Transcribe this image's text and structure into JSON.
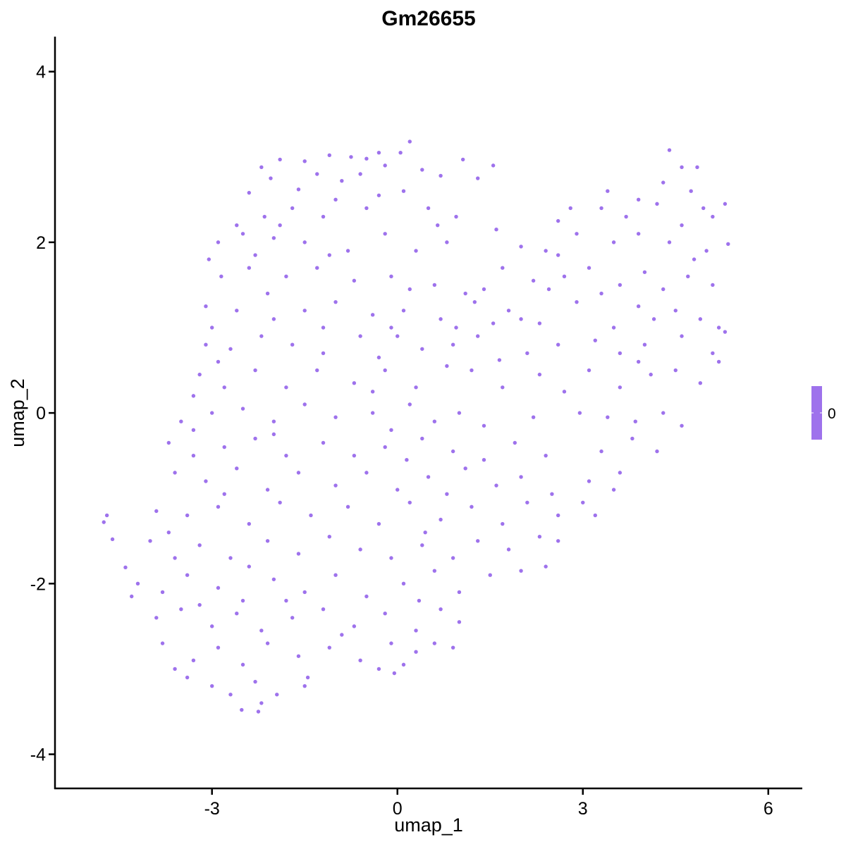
{
  "chart_data": {
    "type": "scatter",
    "title": "Gm26655",
    "xlabel": "umap_1",
    "ylabel": "umap_2",
    "xlim": [
      -5.54,
      6.55
    ],
    "ylim": [
      -4.4,
      4.41
    ],
    "xticks": [
      -3,
      0,
      3,
      6
    ],
    "yticks": [
      -4,
      -2,
      0,
      2,
      4
    ],
    "xtick_labels": [
      "-3",
      "0",
      "3",
      "6"
    ],
    "ytick_labels": [
      "-4",
      "-2",
      "0",
      "2",
      "4"
    ],
    "grid": false,
    "point_color": "#9e72ec",
    "legend": {
      "type": "colorbar",
      "placement": "right",
      "labels": [
        "0"
      ],
      "color": "#9e72ec"
    },
    "points": [
      [
        0.2,
        3.18
      ],
      [
        -0.3,
        3.05
      ],
      [
        0.05,
        3.05
      ],
      [
        -1.1,
        3.02
      ],
      [
        -0.75,
        3.0
      ],
      [
        -0.5,
        2.98
      ],
      [
        4.4,
        3.08
      ],
      [
        1.06,
        2.97
      ],
      [
        -1.9,
        2.97
      ],
      [
        -1.5,
        2.95
      ],
      [
        -2.2,
        2.88
      ],
      [
        -1.3,
        2.8
      ],
      [
        -0.9,
        2.72
      ],
      [
        -0.2,
        2.9
      ],
      [
        0.4,
        2.85
      ],
      [
        0.7,
        2.78
      ],
      [
        1.3,
        2.75
      ],
      [
        1.55,
        2.9
      ],
      [
        4.6,
        2.88
      ],
      [
        4.85,
        2.88
      ],
      [
        4.3,
        2.7
      ],
      [
        4.75,
        2.6
      ],
      [
        -2.4,
        2.58
      ],
      [
        -1.6,
        2.62
      ],
      [
        -0.6,
        2.8
      ],
      [
        0.1,
        2.6
      ],
      [
        -2.05,
        2.75
      ],
      [
        -1.0,
        2.5
      ],
      [
        3.4,
        2.6
      ],
      [
        3.9,
        2.5
      ],
      [
        -2.6,
        2.2
      ],
      [
        -2.15,
        2.3
      ],
      [
        -1.7,
        2.4
      ],
      [
        -1.2,
        2.3
      ],
      [
        -0.5,
        2.4
      ],
      [
        0.5,
        2.4
      ],
      [
        0.95,
        2.3
      ],
      [
        2.8,
        2.4
      ],
      [
        3.3,
        2.4
      ],
      [
        3.7,
        2.3
      ],
      [
        4.2,
        2.45
      ],
      [
        4.95,
        2.4
      ],
      [
        5.3,
        2.45
      ],
      [
        5.1,
        2.3
      ],
      [
        -0.3,
        2.55
      ],
      [
        0.65,
        2.2
      ],
      [
        -1.9,
        2.2
      ],
      [
        2.6,
        2.25
      ],
      [
        4.6,
        2.2
      ],
      [
        -2.9,
        2.0
      ],
      [
        -2.5,
        2.1
      ],
      [
        -2.0,
        2.05
      ],
      [
        -1.5,
        2.0
      ],
      [
        -0.8,
        1.9
      ],
      [
        -0.2,
        2.1
      ],
      [
        0.3,
        1.9
      ],
      [
        0.8,
        2.0
      ],
      [
        1.6,
        2.15
      ],
      [
        2.0,
        1.95
      ],
      [
        2.4,
        1.9
      ],
      [
        2.9,
        2.1
      ],
      [
        3.5,
        2.0
      ],
      [
        3.9,
        2.1
      ],
      [
        4.4,
        2.0
      ],
      [
        5.0,
        1.9
      ],
      [
        5.35,
        1.98
      ],
      [
        -3.05,
        1.8
      ],
      [
        -2.3,
        1.85
      ],
      [
        -1.1,
        1.85
      ],
      [
        2.6,
        1.85
      ],
      [
        4.8,
        1.8
      ],
      [
        -2.85,
        1.6
      ],
      [
        -2.4,
        1.7
      ],
      [
        -1.8,
        1.6
      ],
      [
        -1.3,
        1.7
      ],
      [
        -0.7,
        1.55
      ],
      [
        -0.1,
        1.6
      ],
      [
        0.6,
        1.5
      ],
      [
        1.1,
        1.4
      ],
      [
        1.7,
        1.7
      ],
      [
        2.2,
        1.55
      ],
      [
        2.7,
        1.6
      ],
      [
        3.1,
        1.7
      ],
      [
        3.6,
        1.5
      ],
      [
        4.0,
        1.65
      ],
      [
        4.3,
        1.45
      ],
      [
        4.7,
        1.6
      ],
      [
        5.1,
        1.5
      ],
      [
        -2.1,
        1.4
      ],
      [
        0.2,
        1.45
      ],
      [
        1.4,
        1.45
      ],
      [
        2.45,
        1.45
      ],
      [
        3.3,
        1.4
      ],
      [
        -3.1,
        1.25
      ],
      [
        -3.0,
        1.0
      ],
      [
        -2.6,
        1.2
      ],
      [
        -2.0,
        1.1
      ],
      [
        -1.5,
        1.2
      ],
      [
        -1.0,
        1.3
      ],
      [
        -0.4,
        1.15
      ],
      [
        0.1,
        1.2
      ],
      [
        0.7,
        1.1
      ],
      [
        1.25,
        1.3
      ],
      [
        1.8,
        1.2
      ],
      [
        2.3,
        1.05
      ],
      [
        2.9,
        1.3
      ],
      [
        3.9,
        1.25
      ],
      [
        4.5,
        1.2
      ],
      [
        4.9,
        1.1
      ],
      [
        5.2,
        1.0
      ],
      [
        -1.2,
        1.0
      ],
      [
        -0.1,
        1.0
      ],
      [
        0.95,
        1.0
      ],
      [
        1.55,
        1.05
      ],
      [
        2.0,
        1.1
      ],
      [
        3.5,
        1.0
      ],
      [
        4.15,
        1.1
      ],
      [
        -3.1,
        0.8
      ],
      [
        -2.7,
        0.75
      ],
      [
        -2.2,
        0.9
      ],
      [
        -1.7,
        0.8
      ],
      [
        -1.2,
        0.7
      ],
      [
        -0.6,
        0.9
      ],
      [
        0.0,
        0.9
      ],
      [
        0.4,
        0.75
      ],
      [
        0.9,
        0.8
      ],
      [
        1.3,
        0.9
      ],
      [
        2.1,
        0.7
      ],
      [
        2.6,
        0.8
      ],
      [
        3.2,
        0.85
      ],
      [
        3.6,
        0.7
      ],
      [
        4.0,
        0.8
      ],
      [
        4.6,
        0.9
      ],
      [
        5.1,
        0.7
      ],
      [
        5.3,
        0.95
      ],
      [
        -2.9,
        0.6
      ],
      [
        -0.3,
        0.65
      ],
      [
        1.65,
        0.62
      ],
      [
        -3.2,
        0.45
      ],
      [
        -2.8,
        0.3
      ],
      [
        -2.3,
        0.5
      ],
      [
        -1.8,
        0.3
      ],
      [
        -1.3,
        0.5
      ],
      [
        -0.7,
        0.35
      ],
      [
        -0.2,
        0.5
      ],
      [
        0.3,
        0.3
      ],
      [
        0.8,
        0.55
      ],
      [
        1.2,
        0.5
      ],
      [
        1.7,
        0.3
      ],
      [
        2.3,
        0.45
      ],
      [
        3.1,
        0.5
      ],
      [
        3.6,
        0.3
      ],
      [
        4.1,
        0.45
      ],
      [
        4.5,
        0.5
      ],
      [
        4.9,
        0.35
      ],
      [
        5.2,
        0.6
      ],
      [
        -3.3,
        0.2
      ],
      [
        -0.4,
        0.25
      ],
      [
        2.7,
        0.25
      ],
      [
        3.9,
        0.6
      ],
      [
        -3.5,
        -0.1
      ],
      [
        -3.0,
        0.0
      ],
      [
        -2.5,
        0.05
      ],
      [
        -2.0,
        -0.1
      ],
      [
        -1.5,
        0.1
      ],
      [
        -1.0,
        -0.05
      ],
      [
        -0.4,
        0.0
      ],
      [
        0.2,
        0.1
      ],
      [
        0.6,
        -0.1
      ],
      [
        1.0,
        0.0
      ],
      [
        1.4,
        -0.15
      ],
      [
        2.2,
        -0.05
      ],
      [
        2.95,
        0.0
      ],
      [
        3.4,
        -0.05
      ],
      [
        3.85,
        -0.1
      ],
      [
        4.3,
        0.0
      ],
      [
        4.6,
        -0.15
      ],
      [
        -3.3,
        -0.2
      ],
      [
        -0.1,
        -0.2
      ],
      [
        -3.7,
        -0.35
      ],
      [
        -3.3,
        -0.5
      ],
      [
        -2.8,
        -0.4
      ],
      [
        -2.3,
        -0.3
      ],
      [
        -1.8,
        -0.5
      ],
      [
        -1.2,
        -0.35
      ],
      [
        -0.7,
        -0.5
      ],
      [
        -0.2,
        -0.4
      ],
      [
        0.4,
        -0.3
      ],
      [
        0.9,
        -0.45
      ],
      [
        1.4,
        -0.55
      ],
      [
        1.9,
        -0.35
      ],
      [
        2.4,
        -0.5
      ],
      [
        3.3,
        -0.45
      ],
      [
        3.8,
        -0.3
      ],
      [
        4.2,
        -0.45
      ],
      [
        -2.0,
        -0.25
      ],
      [
        0.15,
        -0.55
      ],
      [
        -3.6,
        -0.7
      ],
      [
        -3.1,
        -0.8
      ],
      [
        -2.6,
        -0.65
      ],
      [
        -2.1,
        -0.9
      ],
      [
        -1.6,
        -0.7
      ],
      [
        -1.0,
        -0.85
      ],
      [
        -0.5,
        -0.7
      ],
      [
        0.0,
        -0.9
      ],
      [
        0.5,
        -0.75
      ],
      [
        1.1,
        -0.65
      ],
      [
        1.6,
        -0.85
      ],
      [
        2.0,
        -0.75
      ],
      [
        2.5,
        -0.95
      ],
      [
        3.1,
        -0.8
      ],
      [
        3.6,
        -0.7
      ],
      [
        3.5,
        -0.9
      ],
      [
        -2.8,
        -0.95
      ],
      [
        0.8,
        -0.95
      ],
      [
        -4.7,
        -1.2
      ],
      [
        -4.75,
        -1.28
      ],
      [
        -3.9,
        -1.15
      ],
      [
        -3.4,
        -1.2
      ],
      [
        -2.9,
        -1.1
      ],
      [
        -2.4,
        -1.3
      ],
      [
        -1.9,
        -1.05
      ],
      [
        -1.4,
        -1.2
      ],
      [
        -0.8,
        -1.1
      ],
      [
        -0.3,
        -1.3
      ],
      [
        0.2,
        -1.05
      ],
      [
        0.7,
        -1.25
      ],
      [
        1.2,
        -1.1
      ],
      [
        1.7,
        -1.3
      ],
      [
        2.1,
        -1.05
      ],
      [
        2.6,
        -1.2
      ],
      [
        3.0,
        -1.05
      ],
      [
        3.2,
        -1.2
      ],
      [
        -3.7,
        -1.4
      ],
      [
        0.45,
        -1.4
      ],
      [
        -4.61,
        -1.48
      ],
      [
        -4.0,
        -1.5
      ],
      [
        -3.6,
        -1.7
      ],
      [
        -3.2,
        -1.55
      ],
      [
        -2.7,
        -1.7
      ],
      [
        -2.1,
        -1.5
      ],
      [
        -1.6,
        -1.65
      ],
      [
        -1.1,
        -1.45
      ],
      [
        -0.6,
        -1.6
      ],
      [
        -0.1,
        -1.7
      ],
      [
        0.4,
        -1.55
      ],
      [
        0.9,
        -1.7
      ],
      [
        1.3,
        -1.5
      ],
      [
        1.8,
        -1.6
      ],
      [
        2.3,
        -1.45
      ],
      [
        2.6,
        -1.5
      ],
      [
        -4.4,
        -1.81
      ],
      [
        -2.4,
        -1.8
      ],
      [
        -4.2,
        -2.0
      ],
      [
        -3.8,
        -2.1
      ],
      [
        -3.4,
        -1.9
      ],
      [
        -2.9,
        -2.05
      ],
      [
        -2.5,
        -2.2
      ],
      [
        -2.0,
        -1.95
      ],
      [
        -1.5,
        -2.1
      ],
      [
        -1.0,
        -1.9
      ],
      [
        -0.5,
        -2.15
      ],
      [
        0.1,
        -2.0
      ],
      [
        0.6,
        -1.85
      ],
      [
        1.0,
        -2.1
      ],
      [
        1.5,
        -1.9
      ],
      [
        2.0,
        -1.85
      ],
      [
        2.4,
        -1.8
      ],
      [
        -4.3,
        -2.15
      ],
      [
        -1.8,
        -2.2
      ],
      [
        0.35,
        -2.2
      ],
      [
        -3.9,
        -2.4
      ],
      [
        -3.5,
        -2.3
      ],
      [
        -3.0,
        -2.5
      ],
      [
        -2.6,
        -2.35
      ],
      [
        -2.2,
        -2.55
      ],
      [
        -1.7,
        -2.4
      ],
      [
        -1.2,
        -2.3
      ],
      [
        -0.7,
        -2.5
      ],
      [
        -0.2,
        -2.35
      ],
      [
        0.3,
        -2.55
      ],
      [
        0.7,
        -2.3
      ],
      [
        1.0,
        -2.45
      ],
      [
        -3.2,
        -2.25
      ],
      [
        -0.9,
        -2.6
      ],
      [
        -3.8,
        -2.7
      ],
      [
        -3.3,
        -2.9
      ],
      [
        -2.9,
        -2.75
      ],
      [
        -2.5,
        -2.95
      ],
      [
        -2.1,
        -2.7
      ],
      [
        -1.6,
        -2.85
      ],
      [
        -1.1,
        -2.75
      ],
      [
        -0.6,
        -2.9
      ],
      [
        -0.1,
        -2.7
      ],
      [
        0.3,
        -2.8
      ],
      [
        0.6,
        -2.7
      ],
      [
        0.9,
        -2.75
      ],
      [
        -3.6,
        -3.0
      ],
      [
        -0.3,
        -3.0
      ],
      [
        0.1,
        -2.95
      ],
      [
        -3.4,
        -3.1
      ],
      [
        -3.0,
        -3.2
      ],
      [
        -2.7,
        -3.3
      ],
      [
        -2.3,
        -3.15
      ],
      [
        -1.95,
        -3.3
      ],
      [
        -1.5,
        -3.2
      ],
      [
        -0.05,
        -3.05
      ],
      [
        -2.52,
        -3.48
      ],
      [
        -2.25,
        -3.5
      ],
      [
        -2.2,
        -3.4
      ],
      [
        -1.45,
        -3.1
      ]
    ]
  }
}
